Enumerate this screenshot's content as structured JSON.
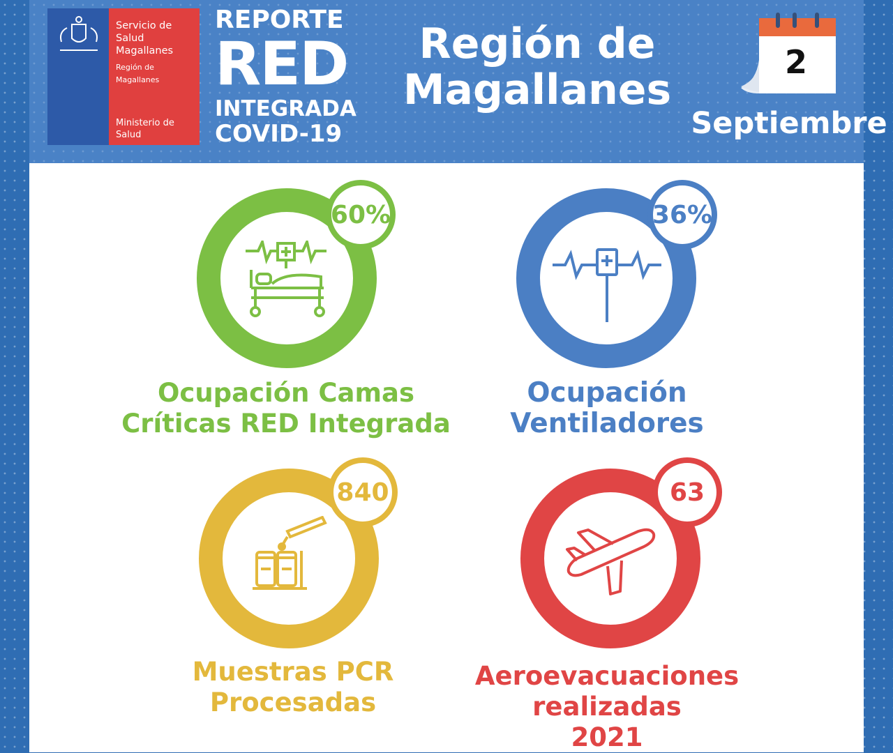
{
  "header": {
    "logo": {
      "line1": "Servicio de Salud Magallanes",
      "line2": "Región de Magallanes",
      "line3": "Ministerio de Salud"
    },
    "report": {
      "line1": "REPORTE",
      "line2": "RED",
      "line3": "INTEGRADA",
      "line4": "COVID-19"
    },
    "region_line1": "Región de",
    "region_line2": "Magallanes",
    "day": "2",
    "month": "Septiembre"
  },
  "cards": [
    {
      "value": "60%",
      "label_line1": "Ocupación Camas",
      "label_line2": "Críticas RED Integrada",
      "color": "#7cbf44",
      "icon": "hospital-bed-icon"
    },
    {
      "value": "36%",
      "label_line1": "Ocupación",
      "label_line2": "Ventiladores",
      "color": "#4b7fc4",
      "icon": "ventilator-icon"
    },
    {
      "value": "840",
      "label_line1": "Muestras PCR",
      "label_line2": "Procesadas",
      "color": "#e3b83c",
      "icon": "test-tubes-icon"
    },
    {
      "value": "63",
      "label_line1": "Aeroevacuaciones",
      "label_line2": "realizadas",
      "label_line3": "2021",
      "color": "#e04545",
      "icon": "airplane-icon"
    }
  ]
}
